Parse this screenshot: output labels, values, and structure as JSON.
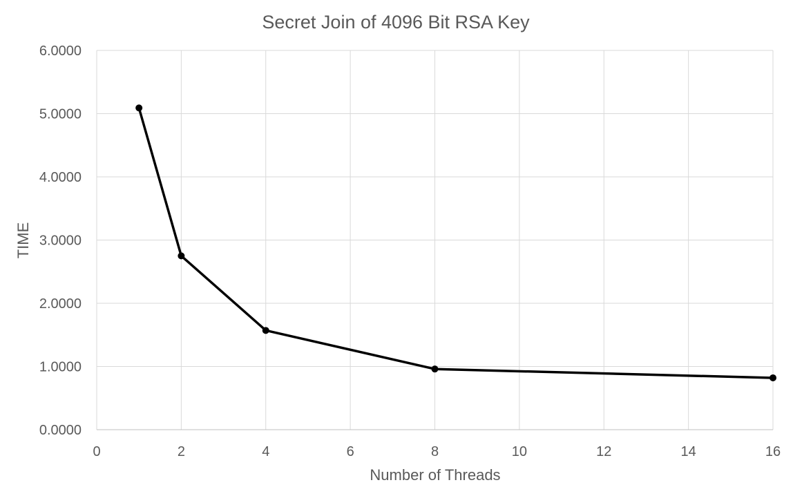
{
  "chart_data": {
    "type": "line",
    "title": "Secret Join of 4096 Bit RSA Key",
    "xlabel": "Number of Threads",
    "ylabel": "TIME",
    "xlim": [
      0,
      16
    ],
    "ylim": [
      0,
      6
    ],
    "x_ticks": [
      "0",
      "2",
      "4",
      "6",
      "8",
      "10",
      "12",
      "14",
      "16"
    ],
    "y_ticks": [
      "0.0000",
      "1.0000",
      "2.0000",
      "3.0000",
      "4.0000",
      "5.0000",
      "6.0000"
    ],
    "grid": true,
    "legend": "none",
    "series": [
      {
        "color": "#000000",
        "x": [
          1,
          2,
          4,
          8,
          16
        ],
        "y": [
          5.09,
          2.75,
          1.57,
          0.96,
          0.82
        ]
      }
    ]
  }
}
